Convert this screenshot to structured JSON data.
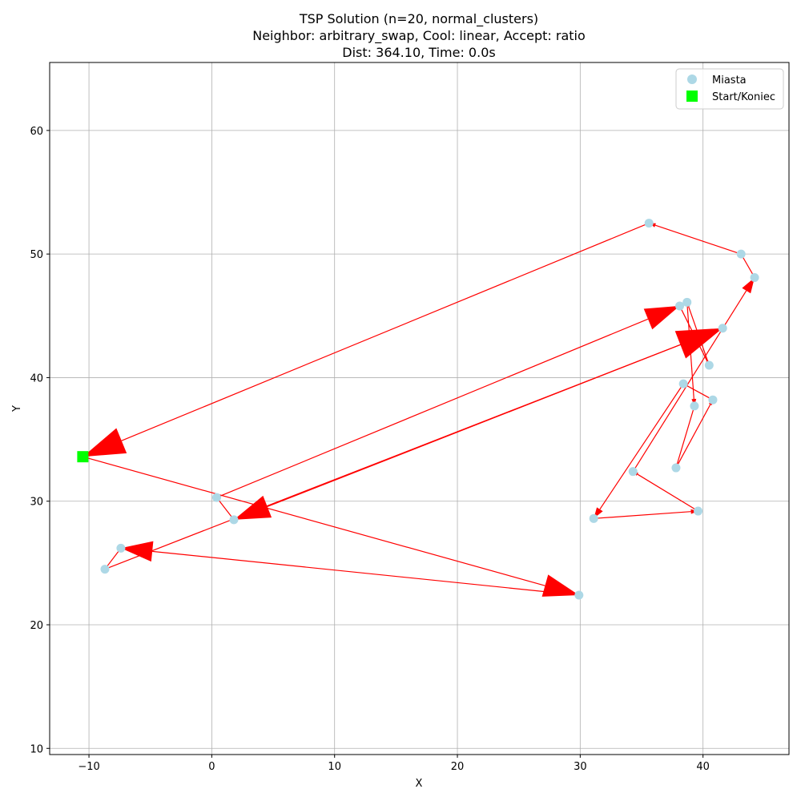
{
  "chart_data": {
    "type": "scatter",
    "title_lines": [
      "TSP Solution (n=20, normal_clusters)",
      "Neighbor: arbitrary_swap, Cool: linear, Accept: ratio",
      "Dist: 364.10, Time: 0.0s"
    ],
    "xlabel": "X",
    "ylabel": "Y",
    "xlim": [
      -13.2,
      47
    ],
    "ylim": [
      9.5,
      65.5
    ],
    "xticks": [
      -10,
      0,
      10,
      20,
      30,
      40
    ],
    "xtick_labels": [
      "−10",
      "0",
      "10",
      "20",
      "30",
      "40"
    ],
    "yticks": [
      10,
      20,
      30,
      40,
      50,
      60
    ],
    "ytick_labels": [
      "10",
      "20",
      "30",
      "40",
      "50",
      "60"
    ],
    "grid": true,
    "legend": {
      "position": "top-right",
      "entries": [
        {
          "label": "Miasta",
          "marker": "circle",
          "color": "#add8e6"
        },
        {
          "label": "Start/Koniec",
          "marker": "square",
          "color": "#00ff00"
        }
      ]
    },
    "colors": {
      "cities": "#add8e6",
      "start": "#00ff00",
      "route": "#ff0000"
    },
    "start": {
      "x": -10.5,
      "y": 33.6
    },
    "cities": [
      {
        "x": -10.5,
        "y": 33.6
      },
      {
        "x": 29.9,
        "y": 22.4
      },
      {
        "x": -7.4,
        "y": 26.2
      },
      {
        "x": -8.7,
        "y": 24.5
      },
      {
        "x": 41.6,
        "y": 44.0
      },
      {
        "x": 1.8,
        "y": 28.5
      },
      {
        "x": 0.4,
        "y": 30.3
      },
      {
        "x": 38.1,
        "y": 45.8
      },
      {
        "x": 40.5,
        "y": 41.0
      },
      {
        "x": 38.7,
        "y": 46.1
      },
      {
        "x": 39.3,
        "y": 37.7
      },
      {
        "x": 37.8,
        "y": 32.7
      },
      {
        "x": 40.8,
        "y": 38.2
      },
      {
        "x": 38.4,
        "y": 39.5
      },
      {
        "x": 31.1,
        "y": 28.6
      },
      {
        "x": 39.6,
        "y": 29.2
      },
      {
        "x": 34.3,
        "y": 32.4
      },
      {
        "x": 44.2,
        "y": 48.1
      },
      {
        "x": 43.1,
        "y": 50.0
      },
      {
        "x": 35.6,
        "y": 52.5
      }
    ],
    "route": [
      0,
      1,
      2,
      3,
      4,
      5,
      6,
      7,
      8,
      9,
      10,
      11,
      12,
      13,
      14,
      15,
      16,
      17,
      18,
      19,
      0
    ]
  }
}
